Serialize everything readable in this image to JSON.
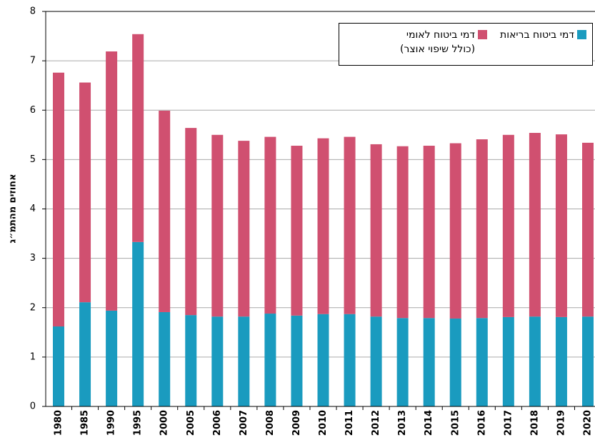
{
  "chart_data": {
    "type": "stacked_bar",
    "y_label": "אחוזים מהתמ״ג",
    "categories": [
      "1980",
      "1985",
      "1990",
      "1995",
      "2000",
      "2005",
      "2006",
      "2007",
      "2008",
      "2009",
      "2010",
      "2011",
      "2012",
      "2013",
      "2014",
      "2015",
      "2016",
      "2017",
      "2018",
      "2019",
      "2020"
    ],
    "series": [
      {
        "name": "דמי ביטוח בריאות",
        "color": "#1a9bbf",
        "values": [
          1.62,
          2.11,
          1.94,
          3.33,
          1.91,
          1.85,
          1.82,
          1.82,
          1.88,
          1.84,
          1.87,
          1.87,
          1.82,
          1.79,
          1.79,
          1.78,
          1.79,
          1.81,
          1.82,
          1.81,
          1.82
        ]
      },
      {
        "name": "דמי ביטוח לאומי (כולל שיפוי אוצר)",
        "color": "#d05070",
        "values": [
          5.14,
          4.45,
          5.25,
          4.21,
          4.08,
          3.79,
          3.68,
          3.56,
          3.58,
          3.44,
          3.56,
          3.59,
          3.49,
          3.48,
          3.49,
          3.55,
          3.62,
          3.69,
          3.72,
          3.7,
          3.52
        ]
      }
    ],
    "ylim": [
      0,
      8
    ],
    "yticks": [
      0,
      1,
      2,
      3,
      4,
      5,
      6,
      7,
      8
    ],
    "grid": true
  }
}
